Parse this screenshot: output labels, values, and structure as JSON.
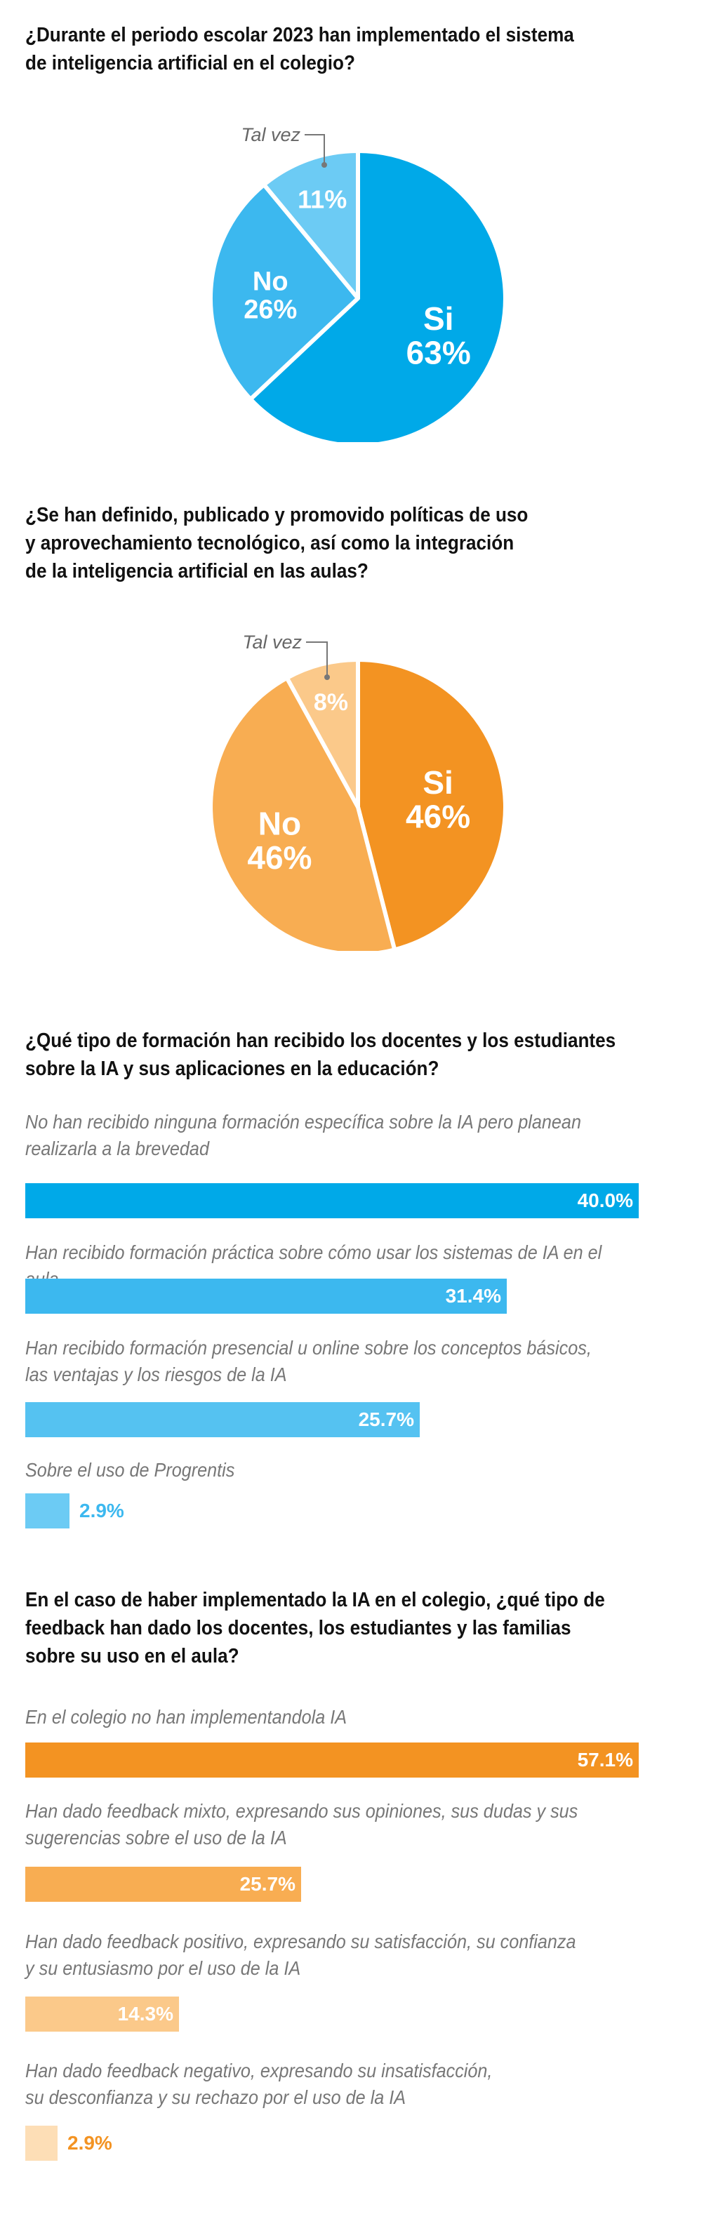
{
  "colors": {
    "blue_dark": "#00A9E8",
    "blue_mid": "#3CB8EF",
    "blue_light": "#6CCBF4",
    "orange_dark": "#F39322",
    "orange_mid": "#F8AD52",
    "orange_light": "#FBC98A",
    "orange_pale": "#FDDEB6"
  },
  "chart_data": [
    {
      "type": "pie",
      "title": "¿Durante el periodo escolar 2023 han implementado el sistema de inteligencia artificial en el colegio?",
      "title_lines": [
        "¿Durante el periodo escolar 2023 han implementado el sistema",
        "de inteligencia artificial en el colegio?"
      ],
      "slices": [
        {
          "label": "Si",
          "value": 63,
          "display": "63%",
          "color": "#00A9E8"
        },
        {
          "label": "No",
          "value": 26,
          "display": "26%",
          "color": "#3CB8EF"
        },
        {
          "label": "Tal vez",
          "value": 11,
          "display": "11%",
          "color": "#6CCBF4"
        }
      ]
    },
    {
      "type": "pie",
      "title": "¿Se han definido, publicado y promovido políticas de uso y aprovechamiento tecnológico, así como la integración de la inteligencia artificial en las aulas?",
      "title_lines": [
        "¿Se han definido, publicado y promovido políticas de uso",
        "y aprovechamiento tecnológico, así como la integración",
        "de la inteligencia artificial en las aulas?"
      ],
      "slices": [
        {
          "label": "Si",
          "value": 46,
          "display": "46%",
          "color": "#F39322"
        },
        {
          "label": "No",
          "value": 46,
          "display": "46%",
          "color": "#F8AD52"
        },
        {
          "label": "Tal vez",
          "value": 8,
          "display": "8%",
          "color": "#FBC98A"
        }
      ]
    },
    {
      "type": "bar",
      "orientation": "horizontal",
      "title": "¿Qué tipo de formación han recibido los docentes y los estudiantes sobre la IA y sus aplicaciones en la educación?",
      "title_lines": [
        "¿Qué tipo de formación han recibido los docentes y los estudiantes",
        "sobre la IA y sus aplicaciones en la educación?"
      ],
      "xlim": [
        0,
        40
      ],
      "bars": [
        {
          "lines": [
            "No han recibido ninguna formación específica sobre la IA pero planean",
            "realizarla a la brevedad"
          ],
          "value": 40.0,
          "display": "40.0%",
          "color": "#00A9E8"
        },
        {
          "lines": [
            "Han recibido formación práctica sobre cómo usar los sistemas de IA en el aula"
          ],
          "value": 31.4,
          "display": "31.4%",
          "color": "#3CB8EF"
        },
        {
          "lines": [
            "Han recibido formación presencial u online sobre los conceptos básicos,",
            "las ventajas y los riesgos de la IA"
          ],
          "value": 25.7,
          "display": "25.7%",
          "color": "#55C2F1"
        },
        {
          "lines": [
            "Sobre el uso de Progrentis"
          ],
          "value": 2.9,
          "display": "2.9%",
          "color": "#6CCBF4"
        }
      ]
    },
    {
      "type": "bar",
      "orientation": "horizontal",
      "title": " En el caso de haber implementado la IA en el colegio, ¿qué tipo de feedback han dado los docentes, los estudiantes y las familias sobre su uso en el aula?",
      "title_lines": [
        " En el caso de haber implementado la IA en el colegio, ¿qué tipo de",
        "feedback han dado los docentes, los estudiantes y las familias",
        "sobre su uso en el aula?"
      ],
      "xlim": [
        0,
        57.1
      ],
      "bars": [
        {
          "lines": [
            "En el colegio no han implementandola IA"
          ],
          "value": 57.1,
          "display": "57.1%",
          "color": "#F39322"
        },
        {
          "lines": [
            "Han dado feedback mixto, expresando sus opiniones, sus dudas y sus",
            "sugerencias sobre el uso de la IA"
          ],
          "value": 25.7,
          "display": "25.7%",
          "color": "#F8AD52"
        },
        {
          "lines": [
            "Han dado feedback positivo, expresando su satisfacción, su confianza",
            "y su entusiasmo por el uso de la IA"
          ],
          "value": 14.3,
          "display": "14.3%",
          "color": "#FBC98A"
        },
        {
          "lines": [
            "Han dado feedback negativo, expresando su insatisfacción,",
            "su desconfianza y su rechazo por el uso de la IA"
          ],
          "value": 2.9,
          "display": "2.9%",
          "color": "#FDDEB6"
        }
      ]
    }
  ]
}
